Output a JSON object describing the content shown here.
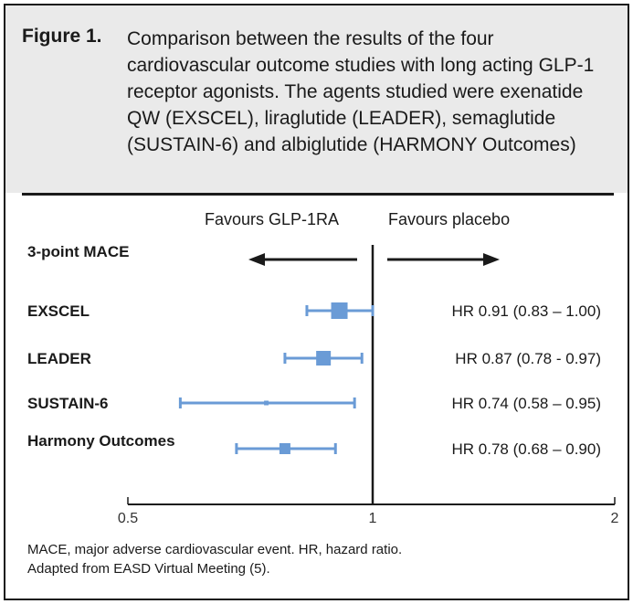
{
  "figure": {
    "label": "Figure 1.",
    "caption": "Comparison between the results of the four cardiovascular outcome studies with long acting GLP-1 receptor agonists. The agents studied were exenatide QW (EXSCEL), liraglutide (LEADER), semaglutide (SUSTAIN-6) and albiglutide (HARMONY Outcomes)"
  },
  "footnote": {
    "line1": "MACE, major adverse cardiovascular event. HR, hazard ratio.",
    "line2": "Adapted from EASD Virtual Meeting (5)."
  },
  "colors": {
    "marker": "#6a9bd6",
    "axis": "#1a1a1a",
    "header_bg": "#eaeaea"
  },
  "chart_data": {
    "type": "forest",
    "outcome_label": "3-point MACE",
    "favours_left": "Favours GLP-1RA",
    "favours_right": "Favours placebo",
    "reference_line": 1,
    "xlim": [
      0.5,
      2
    ],
    "xticks": [
      {
        "value": 0.5,
        "label": "0.5"
      },
      {
        "value": 1,
        "label": "1"
      },
      {
        "value": 2,
        "label": "2"
      }
    ],
    "studies": [
      {
        "name": "EXSCEL",
        "hr": 0.91,
        "lower": 0.83,
        "upper": 1.0,
        "label": "HR 0.91 (0.83 – 1.00)",
        "marker_size": 18
      },
      {
        "name": "LEADER",
        "hr": 0.87,
        "lower": 0.78,
        "upper": 0.97,
        "label": "HR 0.87 (0.78 - 0.97)",
        "marker_size": 16
      },
      {
        "name": "SUSTAIN-6",
        "hr": 0.74,
        "lower": 0.58,
        "upper": 0.95,
        "label": "HR 0.74 (0.58 – 0.95)",
        "marker_size": 5
      },
      {
        "name": "Harmony Outcomes",
        "hr": 0.78,
        "lower": 0.68,
        "upper": 0.9,
        "label": "HR 0.78 (0.68 – 0.90)",
        "marker_size": 12
      }
    ]
  }
}
